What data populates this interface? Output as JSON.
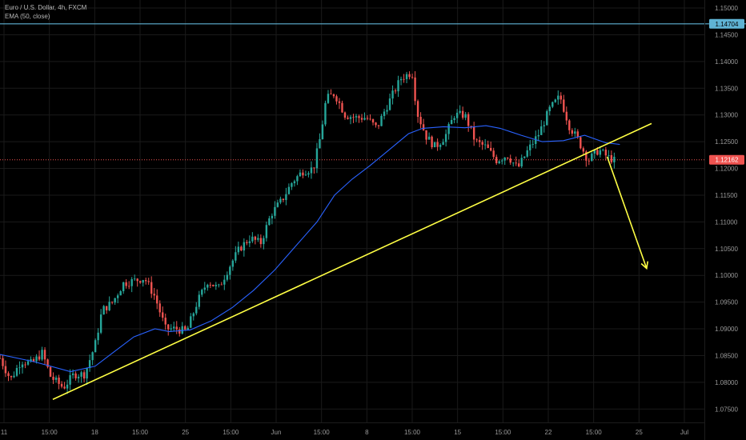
{
  "legend": {
    "symbol": "Euro / U.S. Dollar, 4h, FXCM",
    "indicator": "EMA (50, close)"
  },
  "colors": {
    "background": "#000000",
    "grid": "#1a1a1a",
    "up_candle": "#26a69a",
    "down_candle": "#ef5350",
    "ema": "#2962ff",
    "trendline": "#ffff44",
    "resistance_line": "#5fb3d4",
    "last_price_line": "#ef5350"
  },
  "chart_data": {
    "type": "candlestick",
    "symbol": "Euro / U.S. Dollar",
    "timeframe": "4h",
    "broker": "FXCM",
    "y_ticks": [
      "1.15000",
      "1.14500",
      "1.14000",
      "1.13500",
      "1.13000",
      "1.12500",
      "1.12000",
      "1.11500",
      "1.11000",
      "1.10500",
      "1.10000",
      "1.09500",
      "1.09000",
      "1.08500",
      "1.08000",
      "1.07500"
    ],
    "x_ticks": [
      "11",
      "15:00",
      "18",
      "15:00",
      "25",
      "15:00",
      "Jun",
      "15:00",
      "8",
      "15:00",
      "15",
      "15:00",
      "22",
      "15:00",
      "25",
      "Jul"
    ],
    "ylim": [
      1.0725,
      1.1515
    ],
    "price_badges": [
      {
        "label": "1.14704",
        "value": 1.14704,
        "role": "horizontal line"
      },
      {
        "label": "1.12162",
        "value": 1.12162,
        "role": "last price"
      }
    ],
    "trendline": {
      "from": [
        0.075,
        1.0768
      ],
      "to": [
        0.925,
        1.1284
      ]
    },
    "projection_arrow": {
      "points": [
        [
          0.862,
          1.1222
        ],
        [
          0.918,
          1.1013
        ]
      ]
    },
    "ema_50": [
      [
        0.0,
        1.0852
      ],
      [
        0.05,
        1.0838
      ],
      [
        0.1,
        1.082
      ],
      [
        0.135,
        1.083
      ],
      [
        0.16,
        1.0855
      ],
      [
        0.19,
        1.0885
      ],
      [
        0.22,
        1.09
      ],
      [
        0.24,
        1.0895
      ],
      [
        0.27,
        1.0898
      ],
      [
        0.3,
        1.0915
      ],
      [
        0.33,
        1.094
      ],
      [
        0.36,
        1.0972
      ],
      [
        0.39,
        1.101
      ],
      [
        0.42,
        1.1055
      ],
      [
        0.45,
        1.11
      ],
      [
        0.475,
        1.115
      ],
      [
        0.5,
        1.118
      ],
      [
        0.525,
        1.1205
      ],
      [
        0.55,
        1.1232
      ],
      [
        0.58,
        1.1265
      ],
      [
        0.6,
        1.1275
      ],
      [
        0.63,
        1.1278
      ],
      [
        0.66,
        1.1276
      ],
      [
        0.69,
        1.128
      ],
      [
        0.71,
        1.1275
      ],
      [
        0.74,
        1.1262
      ],
      [
        0.77,
        1.125
      ],
      [
        0.8,
        1.1252
      ],
      [
        0.83,
        1.1262
      ],
      [
        0.86,
        1.1248
      ],
      [
        0.88,
        1.1245
      ]
    ],
    "price_path": [
      [
        0.0,
        1.0845
      ],
      [
        0.015,
        1.0805
      ],
      [
        0.03,
        1.084
      ],
      [
        0.045,
        1.0835
      ],
      [
        0.06,
        1.0855
      ],
      [
        0.072,
        1.081
      ],
      [
        0.09,
        1.079
      ],
      [
        0.105,
        1.0815
      ],
      [
        0.12,
        1.0815
      ],
      [
        0.135,
        1.087
      ],
      [
        0.145,
        1.0935
      ],
      [
        0.16,
        1.095
      ],
      [
        0.175,
        1.0985
      ],
      [
        0.19,
        1.099
      ],
      [
        0.205,
        1.0995
      ],
      [
        0.22,
        1.096
      ],
      [
        0.235,
        1.09
      ],
      [
        0.25,
        1.09
      ],
      [
        0.265,
        1.0895
      ],
      [
        0.28,
        1.095
      ],
      [
        0.295,
        1.099
      ],
      [
        0.31,
        1.0975
      ],
      [
        0.325,
        1.1015
      ],
      [
        0.34,
        1.105
      ],
      [
        0.355,
        1.107
      ],
      [
        0.37,
        1.106
      ],
      [
        0.385,
        1.1115
      ],
      [
        0.4,
        1.114
      ],
      [
        0.415,
        1.1175
      ],
      [
        0.43,
        1.1195
      ],
      [
        0.445,
        1.12
      ],
      [
        0.455,
        1.126
      ],
      [
        0.463,
        1.133
      ],
      [
        0.475,
        1.134
      ],
      [
        0.49,
        1.13
      ],
      [
        0.505,
        1.1295
      ],
      [
        0.52,
        1.1295
      ],
      [
        0.535,
        1.1275
      ],
      [
        0.545,
        1.1305
      ],
      [
        0.56,
        1.1345
      ],
      [
        0.57,
        1.137
      ],
      [
        0.585,
        1.138
      ],
      [
        0.592,
        1.1305
      ],
      [
        0.605,
        1.126
      ],
      [
        0.618,
        1.124
      ],
      [
        0.632,
        1.126
      ],
      [
        0.645,
        1.13
      ],
      [
        0.66,
        1.13
      ],
      [
        0.675,
        1.125
      ],
      [
        0.69,
        1.124
      ],
      [
        0.705,
        1.1215
      ],
      [
        0.72,
        1.1225
      ],
      [
        0.735,
        1.12
      ],
      [
        0.75,
        1.1235
      ],
      [
        0.765,
        1.1265
      ],
      [
        0.78,
        1.131
      ],
      [
        0.795,
        1.1335
      ],
      [
        0.808,
        1.128
      ],
      [
        0.82,
        1.1255
      ],
      [
        0.835,
        1.1215
      ],
      [
        0.85,
        1.1235
      ],
      [
        0.862,
        1.1222
      ],
      [
        0.872,
        1.1215
      ]
    ]
  }
}
